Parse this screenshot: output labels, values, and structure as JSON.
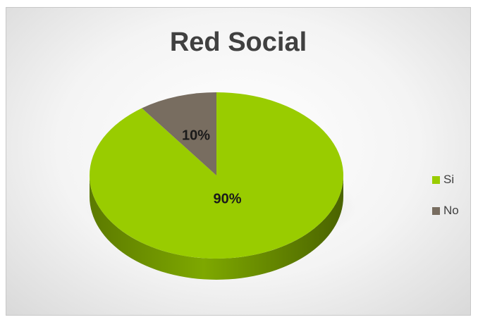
{
  "chart_data": {
    "type": "pie",
    "title": "Red Social",
    "categories": [
      "Si",
      "No"
    ],
    "values": [
      90,
      10
    ],
    "data_labels": [
      "90%",
      "10%"
    ],
    "colors": [
      "#99cc00",
      "#786d60"
    ],
    "legend_position": "right",
    "style": "3d"
  }
}
